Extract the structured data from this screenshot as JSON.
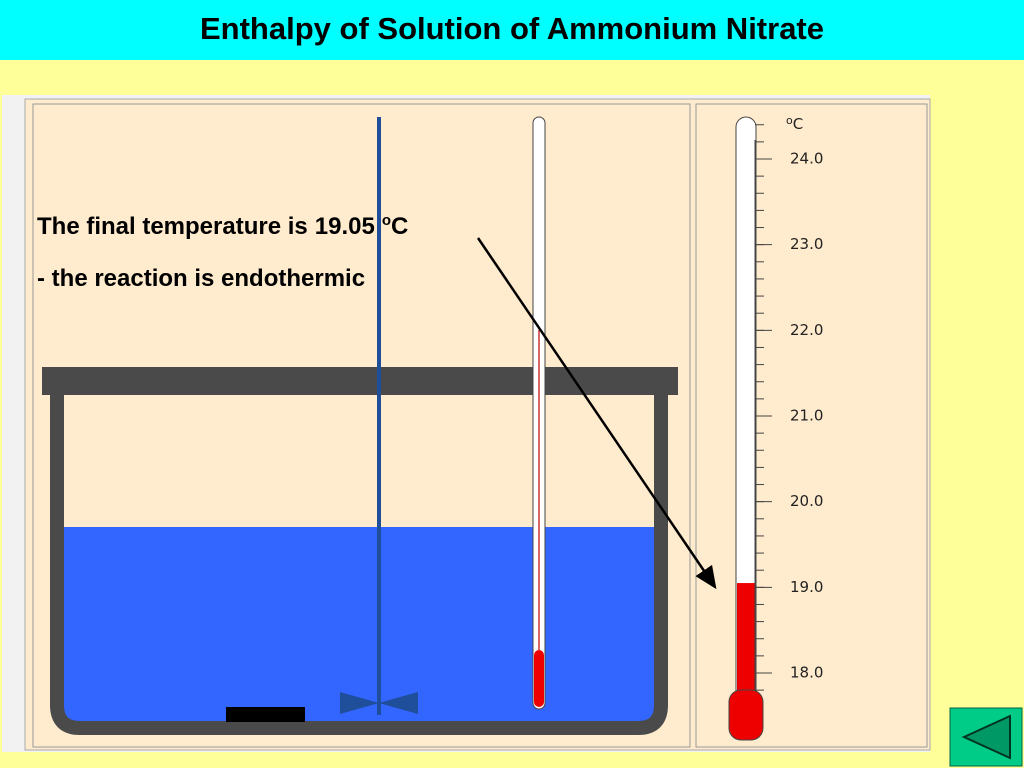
{
  "title": "Enthalpy of Solution of Ammonium Nitrate",
  "result": {
    "text": "The final temperature is",
    "temperature": 19.05,
    "unit_sup": "o",
    "unit": "C"
  },
  "conclusion": "- the reaction is endothermic",
  "thermometer": {
    "unit_sup": "o",
    "unit": "C",
    "ticks": [
      {
        "value": 24,
        "label": "24.0"
      },
      {
        "value": 23,
        "label": "23.0"
      },
      {
        "value": 22,
        "label": "22.0"
      },
      {
        "value": 21,
        "label": "21.0"
      },
      {
        "value": 20,
        "label": "20.0"
      },
      {
        "value": 19,
        "label": "19.0"
      },
      {
        "value": 18,
        "label": "18.0"
      }
    ]
  }
}
